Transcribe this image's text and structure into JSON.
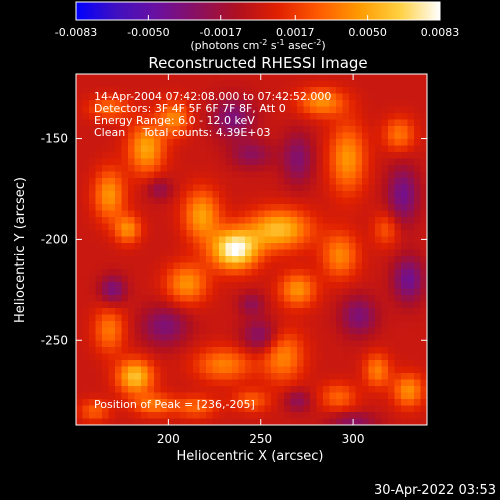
{
  "colorbar": {
    "tick_labels": [
      "-0.0083",
      "-0.0050",
      "-0.0017",
      "0.0017",
      "0.0050",
      "0.0083"
    ],
    "tick_values": [
      -0.0083,
      -0.005,
      -0.0017,
      0.0017,
      0.005,
      0.0083
    ],
    "range": [
      -0.0083,
      0.0083
    ],
    "units_main": "(photons cm",
    "units_sup1": "-2",
    "units_mid1": " s",
    "units_sup2": "-1",
    "units_mid2": " asec",
    "units_sup3": "-2",
    "units_end": ")",
    "gradient_stops": [
      "#0000ff",
      "#4010c0",
      "#6a10a0",
      "#8a1060",
      "#b01020",
      "#e02000",
      "#ff5a00",
      "#ff9a00",
      "#ffd040",
      "#ffffff"
    ]
  },
  "info_lines": [
    "14-Apr-2004 07:42:08.000 to 07:42:52.000",
    "Detectors: 3F 4F 5F 6F 7F 8F, Att 0",
    "Energy Range: 6.0 - 12.0 keV",
    "Clean     Total counts: 4.39E+03"
  ],
  "peak_label": "Position of Peak = [236,-205]",
  "footer_timestamp": "30-Apr-2022 03:53",
  "chart_data": {
    "type": "heatmap",
    "title": "Reconstructed RHESSI Image",
    "xlabel": "Heliocentric X (arcsec)",
    "ylabel": "Heliocentric Y (arcsec)",
    "xlim": [
      150,
      340
    ],
    "ylim": [
      -292,
      -118
    ],
    "x_ticks": [
      200,
      250,
      300
    ],
    "x_tick_labels": [
      "200",
      "250",
      "300"
    ],
    "y_ticks": [
      -150,
      -200,
      -250
    ],
    "y_tick_labels": [
      "-150",
      "-200",
      "-250"
    ],
    "peak": [
      236,
      -205
    ],
    "blobs": [
      {
        "x": 236,
        "y": -205,
        "value": 0.0083,
        "sx": 9,
        "sy": 7
      },
      {
        "x": 260,
        "y": -195,
        "value": 0.0058,
        "sx": 12,
        "sy": 7
      },
      {
        "x": 218,
        "y": -188,
        "value": 0.0048,
        "sx": 7,
        "sy": 9
      },
      {
        "x": 210,
        "y": -222,
        "value": 0.0044,
        "sx": 8,
        "sy": 7
      },
      {
        "x": 188,
        "y": -155,
        "value": 0.005,
        "sx": 7,
        "sy": 9
      },
      {
        "x": 203,
        "y": -140,
        "value": 0.004,
        "sx": 6,
        "sy": 6
      },
      {
        "x": 168,
        "y": -178,
        "value": 0.0045,
        "sx": 6,
        "sy": 9
      },
      {
        "x": 178,
        "y": -195,
        "value": 0.0042,
        "sx": 5,
        "sy": 5
      },
      {
        "x": 182,
        "y": -268,
        "value": 0.006,
        "sx": 7,
        "sy": 6
      },
      {
        "x": 192,
        "y": -282,
        "value": 0.0035,
        "sx": 8,
        "sy": 4
      },
      {
        "x": 230,
        "y": -262,
        "value": 0.0038,
        "sx": 11,
        "sy": 6
      },
      {
        "x": 262,
        "y": -258,
        "value": 0.004,
        "sx": 8,
        "sy": 9
      },
      {
        "x": 270,
        "y": -225,
        "value": 0.0044,
        "sx": 7,
        "sy": 6
      },
      {
        "x": 293,
        "y": -208,
        "value": 0.004,
        "sx": 7,
        "sy": 8
      },
      {
        "x": 297,
        "y": -160,
        "value": 0.0045,
        "sx": 7,
        "sy": 12
      },
      {
        "x": 283,
        "y": -132,
        "value": 0.0042,
        "sx": 9,
        "sy": 5
      },
      {
        "x": 325,
        "y": -148,
        "value": 0.0035,
        "sx": 6,
        "sy": 6
      },
      {
        "x": 330,
        "y": -275,
        "value": 0.0043,
        "sx": 6,
        "sy": 6
      },
      {
        "x": 313,
        "y": -265,
        "value": 0.0038,
        "sx": 5,
        "sy": 6
      },
      {
        "x": 292,
        "y": -278,
        "value": 0.003,
        "sx": 7,
        "sy": 5
      },
      {
        "x": 168,
        "y": -245,
        "value": 0.0036,
        "sx": 6,
        "sy": 8
      },
      {
        "x": 215,
        "y": -283,
        "value": 0.003,
        "sx": 8,
        "sy": 4
      },
      {
        "x": 168,
        "y": -135,
        "value": 0.0032,
        "sx": 8,
        "sy": 4
      },
      {
        "x": 160,
        "y": -285,
        "value": 0.0028,
        "sx": 6,
        "sy": 4
      },
      {
        "x": 245,
        "y": -280,
        "value": 0.0028,
        "sx": 7,
        "sy": 4
      },
      {
        "x": 318,
        "y": -195,
        "value": 0.0026,
        "sx": 5,
        "sy": 6
      },
      {
        "x": 235,
        "y": -140,
        "value": -0.0035,
        "sx": 8,
        "sy": 7
      },
      {
        "x": 198,
        "y": -243,
        "value": -0.0034,
        "sx": 9,
        "sy": 7
      },
      {
        "x": 327,
        "y": -178,
        "value": -0.004,
        "sx": 6,
        "sy": 10
      },
      {
        "x": 330,
        "y": -220,
        "value": -0.0042,
        "sx": 6,
        "sy": 8
      },
      {
        "x": 250,
        "y": -248,
        "value": -0.0034,
        "sx": 7,
        "sy": 6
      },
      {
        "x": 303,
        "y": -238,
        "value": -0.0034,
        "sx": 7,
        "sy": 7
      },
      {
        "x": 170,
        "y": -225,
        "value": -0.0036,
        "sx": 5,
        "sy": 5
      },
      {
        "x": 245,
        "y": -158,
        "value": -0.0026,
        "sx": 8,
        "sy": 5
      },
      {
        "x": 270,
        "y": -160,
        "value": -0.0032,
        "sx": 6,
        "sy": 9
      },
      {
        "x": 245,
        "y": -232,
        "value": -0.0024,
        "sx": 5,
        "sy": 4
      },
      {
        "x": 300,
        "y": -290,
        "value": -0.0028,
        "sx": 9,
        "sy": 3
      },
      {
        "x": 195,
        "y": -175,
        "value": -0.0024,
        "sx": 5,
        "sy": 4
      },
      {
        "x": 270,
        "y": -280,
        "value": -0.0026,
        "sx": 5,
        "sy": 4
      }
    ]
  }
}
